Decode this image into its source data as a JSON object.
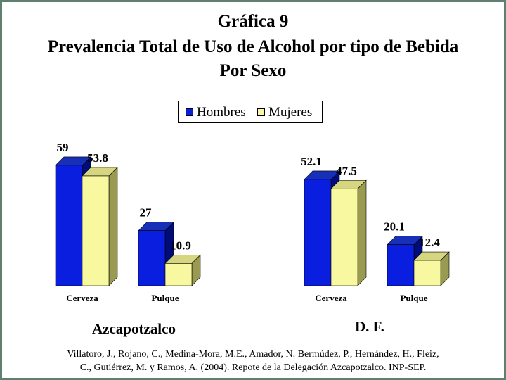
{
  "title_lines": [
    "Gráfica 9",
    "Prevalencia Total de Uso de Alcohol por tipo de Bebida",
    "Por Sexo"
  ],
  "legend": {
    "items": [
      {
        "label": "Hombres",
        "color": "#0a1ee0"
      },
      {
        "label": "Mujeres",
        "color": "#f8f8a0"
      }
    ]
  },
  "chart_data": {
    "type": "bar",
    "groups": [
      {
        "name": "Azcapotzalco",
        "categories": [
          "Cerveza",
          "Pulque"
        ],
        "series": [
          {
            "name": "Hombres",
            "values": [
              59,
              27
            ]
          },
          {
            "name": "Mujeres",
            "values": [
              53.8,
              10.9
            ]
          }
        ]
      },
      {
        "name": "D. F.",
        "categories": [
          "Cerveza",
          "Pulque"
        ],
        "series": [
          {
            "name": "Hombres",
            "values": [
              52.1,
              20.1
            ]
          },
          {
            "name": "Mujeres",
            "values": [
              47.5,
              12.4
            ]
          }
        ]
      }
    ],
    "data_labels": [
      [
        "59",
        "53.8",
        "27",
        "10.9"
      ],
      [
        "52.1",
        "47.5",
        "20.1",
        "12.4"
      ]
    ],
    "ylim": [
      0,
      60
    ],
    "grid": false,
    "legend_position": "top-center",
    "style": "3d-bar"
  },
  "source": {
    "line1": "Villatoro, J., Rojano, C., Medina-Mora, M.E., Amador, N. Bermúdez, P., Hernández, H., Fleiz,",
    "line2": "C., Gutiérrez, M. y Ramos, A. (2004). Repote de la Delegación Azcapotzalco. INP-SEP."
  }
}
